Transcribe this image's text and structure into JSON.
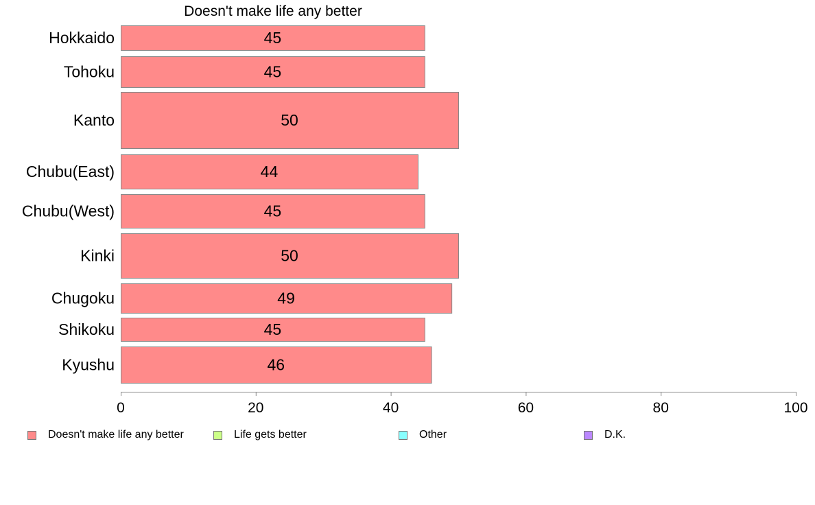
{
  "chart_data": {
    "type": "bar",
    "orientation": "horizontal",
    "title": "Doesn't make life any better",
    "categories": [
      "Hokkaido",
      "Tohoku",
      "Kanto",
      "Chubu(East)",
      "Chubu(West)",
      "Kinki",
      "Chugoku",
      "Shikoku",
      "Kyushu"
    ],
    "series": [
      {
        "name": "Doesn't make life any better",
        "color": "#ff8a8a",
        "values": [
          45,
          45,
          50,
          44,
          45,
          50,
          49,
          45,
          46
        ],
        "labels": [
          "45",
          "45",
          "50",
          "44",
          "45",
          "50",
          "49",
          "45",
          "46"
        ]
      }
    ],
    "xlim": [
      0,
      100
    ],
    "xticks": [
      "0",
      "20",
      "40",
      "60",
      "80",
      "100"
    ],
    "grid": false,
    "legend_position": "bottom"
  },
  "legend": [
    {
      "label": "Doesn't make life any better",
      "color": "#ff8a8a"
    },
    {
      "label": "Life gets better",
      "color": "#ccff88"
    },
    {
      "label": "Other",
      "color": "#88ffff"
    },
    {
      "label": "D.K.",
      "color": "#bb88ff"
    }
  ]
}
